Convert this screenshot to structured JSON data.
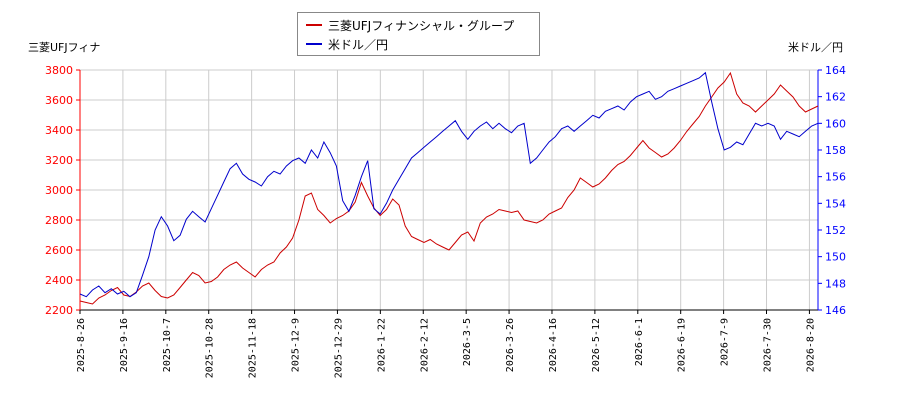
{
  "chart_data": {
    "type": "line",
    "legend_position": "top-center",
    "grid": true,
    "x_ticks": [
      "2025-8-26",
      "2025-9-16",
      "2025-10-7",
      "2025-10-28",
      "2025-11-18",
      "2025-12-9",
      "2025-12-29",
      "2026-1-22",
      "2026-2-12",
      "2026-3-5",
      "2026-3-26",
      "2026-4-16",
      "2026-5-12",
      "2026-6-1",
      "2026-6-19",
      "2026-7-9",
      "2026-7-30",
      "2026-8-20"
    ],
    "y_left": {
      "label": "三菱UFJフィナ",
      "range": [
        2200,
        3800
      ],
      "ticks": [
        2200,
        2400,
        2600,
        2800,
        3000,
        3200,
        3400,
        3600,
        3800
      ],
      "color": "#ff0000"
    },
    "y_right": {
      "label": "米ドル／円",
      "range": [
        146,
        164
      ],
      "ticks": [
        146,
        148,
        150,
        152,
        154,
        156,
        158,
        160,
        162,
        164
      ],
      "color": "#0000ff"
    },
    "series": [
      {
        "name": "三菱UFJフィナンシャル・グループ",
        "axis": "left",
        "color": "#cc0000",
        "values": [
          2260,
          2250,
          2240,
          2280,
          2300,
          2330,
          2350,
          2300,
          2290,
          2320,
          2360,
          2380,
          2330,
          2290,
          2280,
          2300,
          2350,
          2400,
          2450,
          2430,
          2380,
          2390,
          2420,
          2470,
          2500,
          2520,
          2480,
          2450,
          2420,
          2470,
          2500,
          2520,
          2580,
          2620,
          2680,
          2800,
          2960,
          2980,
          2870,
          2830,
          2780,
          2810,
          2830,
          2860,
          2920,
          3050,
          2960,
          2880,
          2830,
          2870,
          2940,
          2900,
          2760,
          2690,
          2670,
          2650,
          2670,
          2640,
          2620,
          2600,
          2650,
          2700,
          2720,
          2660,
          2780,
          2820,
          2840,
          2870,
          2860,
          2850,
          2860,
          2800,
          2790,
          2780,
          2800,
          2840,
          2860,
          2880,
          2950,
          3000,
          3080,
          3050,
          3020,
          3040,
          3080,
          3130,
          3170,
          3190,
          3230,
          3280,
          3330,
          3280,
          3250,
          3220,
          3240,
          3280,
          3330,
          3390,
          3440,
          3490,
          3560,
          3620,
          3680,
          3720,
          3780,
          3640,
          3580,
          3560,
          3520,
          3560,
          3600,
          3640,
          3700,
          3660,
          3620,
          3560,
          3520,
          3540,
          3560
        ]
      },
      {
        "name": "米ドル／円",
        "axis": "right",
        "color": "#0000cc",
        "values": [
          147.2,
          147.0,
          147.5,
          147.8,
          147.3,
          147.6,
          147.2,
          147.4,
          147.0,
          147.3,
          148.6,
          150.0,
          152.0,
          153.0,
          152.3,
          151.2,
          151.6,
          152.8,
          153.4,
          153.0,
          152.6,
          153.6,
          154.6,
          155.6,
          156.6,
          157.0,
          156.2,
          155.8,
          155.6,
          155.3,
          156.0,
          156.4,
          156.2,
          156.8,
          157.2,
          157.4,
          157.0,
          158.0,
          157.4,
          158.6,
          157.8,
          156.8,
          154.2,
          153.4,
          154.6,
          156.0,
          157.2,
          153.6,
          153.2,
          154.0,
          155.0,
          155.8,
          156.6,
          157.4,
          157.8,
          158.2,
          158.6,
          159.0,
          159.4,
          159.8,
          160.2,
          159.4,
          158.8,
          159.4,
          159.8,
          160.1,
          159.6,
          160.0,
          159.6,
          159.3,
          159.8,
          160.0,
          157.0,
          157.4,
          158.0,
          158.6,
          159.0,
          159.6,
          159.8,
          159.4,
          159.8,
          160.2,
          160.6,
          160.4,
          160.9,
          161.1,
          161.3,
          161.0,
          161.6,
          162.0,
          162.2,
          162.4,
          161.8,
          162.0,
          162.4,
          162.6,
          162.8,
          163.0,
          163.2,
          163.4,
          163.8,
          161.6,
          159.6,
          158.0,
          158.2,
          158.6,
          158.4,
          159.2,
          160.0,
          159.8,
          160.0,
          159.8,
          158.8,
          159.4,
          159.2,
          159.0,
          159.4,
          159.8,
          160.0
        ]
      }
    ]
  }
}
